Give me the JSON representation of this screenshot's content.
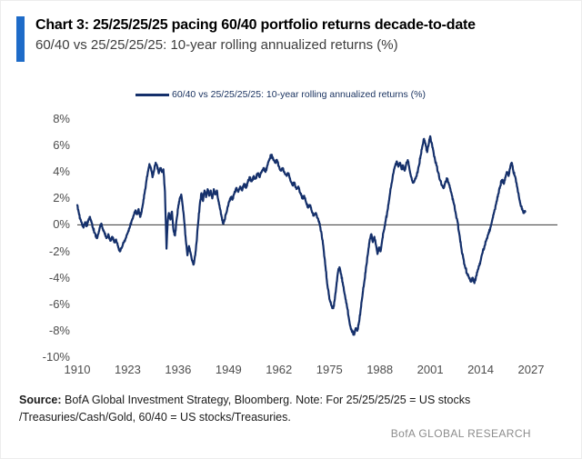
{
  "header": {
    "title": "Chart 3: 25/25/25/25 pacing 60/40 portfolio returns decade-to-date",
    "subtitle": "60/40 vs 25/25/25/25: 10-year rolling annualized returns (%)",
    "accent_color": "#1e6bc8"
  },
  "chart_data": {
    "type": "line",
    "title": "60/40 vs 25/25/25/25: 10-year rolling annualized returns (%)",
    "xlabel": "",
    "ylabel": "",
    "xlim": [
      1910,
      2027
    ],
    "ylim": [
      -10,
      8
    ],
    "x_ticks": [
      1910,
      1923,
      1936,
      1949,
      1962,
      1975,
      1988,
      2001,
      2014,
      2027
    ],
    "y_ticks": [
      8,
      6,
      4,
      2,
      0,
      -2,
      -4,
      -6,
      -8,
      -10
    ],
    "y_tick_suffix": "%",
    "grid": false,
    "zero_line": true,
    "zero_line_color": "#4d4d4d",
    "legend_position": "top",
    "series": [
      {
        "name": "60/40 vs 25/25/25/25: 10-year rolling annualized returns (%)",
        "color": "#15306b",
        "points": [
          [
            1910,
            1.5
          ],
          [
            1910.4,
            0.9
          ],
          [
            1910.8,
            0.4
          ],
          [
            1911.2,
            0.1
          ],
          [
            1911.6,
            -0.2
          ],
          [
            1912,
            0.2
          ],
          [
            1912.4,
            -0.1
          ],
          [
            1912.8,
            0.3
          ],
          [
            1913.2,
            0.6
          ],
          [
            1913.6,
            0.3
          ],
          [
            1914,
            -0.2
          ],
          [
            1914.5,
            -0.6
          ],
          [
            1915,
            -1.0
          ],
          [
            1915.4,
            -0.7
          ],
          [
            1915.8,
            -0.2
          ],
          [
            1916.2,
            0.1
          ],
          [
            1916.6,
            -0.3
          ],
          [
            1917,
            -0.6
          ],
          [
            1917.5,
            -1.0
          ],
          [
            1918,
            -0.7
          ],
          [
            1918.5,
            -1.2
          ],
          [
            1919,
            -0.9
          ],
          [
            1919.5,
            -1.3
          ],
          [
            1920,
            -1.1
          ],
          [
            1920.5,
            -1.6
          ],
          [
            1921,
            -2.0
          ],
          [
            1921.5,
            -1.7
          ],
          [
            1922,
            -1.3
          ],
          [
            1922.5,
            -1.0
          ],
          [
            1923,
            -0.6
          ],
          [
            1923.5,
            -0.2
          ],
          [
            1924,
            0.3
          ],
          [
            1924.5,
            0.7
          ],
          [
            1925,
            1.1
          ],
          [
            1925.4,
            0.8
          ],
          [
            1925.8,
            1.2
          ],
          [
            1926.2,
            0.6
          ],
          [
            1926.6,
            1.0
          ],
          [
            1927,
            1.7
          ],
          [
            1927.4,
            2.5
          ],
          [
            1927.8,
            3.3
          ],
          [
            1928.2,
            4.0
          ],
          [
            1928.6,
            4.6
          ],
          [
            1929,
            4.3
          ],
          [
            1929.4,
            3.6
          ],
          [
            1929.8,
            4.1
          ],
          [
            1930.2,
            4.7
          ],
          [
            1930.6,
            4.4
          ],
          [
            1931,
            3.9
          ],
          [
            1931.4,
            4.3
          ],
          [
            1931.8,
            4.0
          ],
          [
            1932.2,
            4.2
          ],
          [
            1932.6,
            2.5
          ],
          [
            1933,
            -1.8
          ],
          [
            1933.3,
            0.2
          ],
          [
            1933.6,
            0.9
          ],
          [
            1934,
            0.4
          ],
          [
            1934.4,
            1.0
          ],
          [
            1934.8,
            -0.4
          ],
          [
            1935.2,
            -0.8
          ],
          [
            1935.6,
            0.4
          ],
          [
            1936,
            1.3
          ],
          [
            1936.4,
            2.0
          ],
          [
            1936.8,
            2.3
          ],
          [
            1937.2,
            1.4
          ],
          [
            1937.6,
            0.2
          ],
          [
            1938,
            -1.2
          ],
          [
            1938.4,
            -2.3
          ],
          [
            1938.8,
            -1.6
          ],
          [
            1939.2,
            -2.1
          ],
          [
            1939.6,
            -2.7
          ],
          [
            1940,
            -3.0
          ],
          [
            1940.4,
            -2.3
          ],
          [
            1940.8,
            -1.2
          ],
          [
            1941.2,
            0.3
          ],
          [
            1941.6,
            1.6
          ],
          [
            1942,
            2.4
          ],
          [
            1942.4,
            1.8
          ],
          [
            1942.8,
            2.6
          ],
          [
            1943.2,
            2.1
          ],
          [
            1943.6,
            2.7
          ],
          [
            1944,
            2.2
          ],
          [
            1944.4,
            2.6
          ],
          [
            1944.8,
            2.0
          ],
          [
            1945.2,
            2.7
          ],
          [
            1945.6,
            2.3
          ],
          [
            1946,
            2.6
          ],
          [
            1946.4,
            1.8
          ],
          [
            1946.8,
            1.2
          ],
          [
            1947.2,
            0.6
          ],
          [
            1947.6,
            0.1
          ],
          [
            1948,
            0.4
          ],
          [
            1948.4,
            0.9
          ],
          [
            1948.8,
            1.4
          ],
          [
            1949.2,
            1.8
          ],
          [
            1949.6,
            2.1
          ],
          [
            1950,
            1.9
          ],
          [
            1950.5,
            2.4
          ],
          [
            1951,
            2.8
          ],
          [
            1951.5,
            2.5
          ],
          [
            1952,
            2.9
          ],
          [
            1952.5,
            2.6
          ],
          [
            1953,
            3.1
          ],
          [
            1953.5,
            2.8
          ],
          [
            1954,
            3.3
          ],
          [
            1954.5,
            3.6
          ],
          [
            1955,
            3.3
          ],
          [
            1955.5,
            3.7
          ],
          [
            1956,
            3.5
          ],
          [
            1956.5,
            3.9
          ],
          [
            1957,
            3.6
          ],
          [
            1957.5,
            4.0
          ],
          [
            1958,
            4.3
          ],
          [
            1958.5,
            4.0
          ],
          [
            1959,
            4.5
          ],
          [
            1959.5,
            4.9
          ],
          [
            1960,
            5.3
          ],
          [
            1960.5,
            5.0
          ],
          [
            1961,
            4.7
          ],
          [
            1961.5,
            4.9
          ],
          [
            1962,
            4.4
          ],
          [
            1962.5,
            4.1
          ],
          [
            1963,
            4.3
          ],
          [
            1963.5,
            3.9
          ],
          [
            1964,
            3.7
          ],
          [
            1964.5,
            3.9
          ],
          [
            1965,
            3.3
          ],
          [
            1965.5,
            3.0
          ],
          [
            1966,
            3.2
          ],
          [
            1966.5,
            2.7
          ],
          [
            1967,
            2.9
          ],
          [
            1967.5,
            2.4
          ],
          [
            1968,
            2.0
          ],
          [
            1968.5,
            2.2
          ],
          [
            1969,
            1.7
          ],
          [
            1969.5,
            1.3
          ],
          [
            1970,
            1.5
          ],
          [
            1970.5,
            1.0
          ],
          [
            1971,
            0.7
          ],
          [
            1971.5,
            0.9
          ],
          [
            1972,
            0.5
          ],
          [
            1972.5,
            0.1
          ],
          [
            1973,
            -0.7
          ],
          [
            1973.5,
            -1.8
          ],
          [
            1974,
            -3.2
          ],
          [
            1974.5,
            -4.6
          ],
          [
            1975,
            -5.6
          ],
          [
            1975.5,
            -6.1
          ],
          [
            1976,
            -6.3
          ],
          [
            1976.4,
            -5.6
          ],
          [
            1976.8,
            -4.6
          ],
          [
            1977.2,
            -3.6
          ],
          [
            1977.6,
            -3.2
          ],
          [
            1978,
            -3.7
          ],
          [
            1978.5,
            -4.5
          ],
          [
            1979,
            -5.3
          ],
          [
            1979.5,
            -6.1
          ],
          [
            1980,
            -7.0
          ],
          [
            1980.5,
            -7.8
          ],
          [
            1981,
            -8.1
          ],
          [
            1981.4,
            -8.3
          ],
          [
            1981.8,
            -7.8
          ],
          [
            1982.2,
            -8.0
          ],
          [
            1982.6,
            -7.4
          ],
          [
            1983,
            -6.6
          ],
          [
            1983.5,
            -5.4
          ],
          [
            1984,
            -4.3
          ],
          [
            1984.5,
            -3.1
          ],
          [
            1985,
            -2.0
          ],
          [
            1985.4,
            -1.1
          ],
          [
            1985.8,
            -0.7
          ],
          [
            1986.2,
            -1.3
          ],
          [
            1986.6,
            -0.9
          ],
          [
            1987,
            -1.5
          ],
          [
            1987.4,
            -2.2
          ],
          [
            1987.8,
            -1.7
          ],
          [
            1988.2,
            -2.0
          ],
          [
            1988.6,
            -1.2
          ],
          [
            1989,
            -0.5
          ],
          [
            1989.5,
            0.3
          ],
          [
            1990,
            1.1
          ],
          [
            1990.5,
            2.1
          ],
          [
            1991,
            3.1
          ],
          [
            1991.5,
            3.9
          ],
          [
            1992,
            4.5
          ],
          [
            1992.4,
            4.8
          ],
          [
            1992.8,
            4.4
          ],
          [
            1993.2,
            4.7
          ],
          [
            1993.6,
            4.2
          ],
          [
            1994,
            4.5
          ],
          [
            1994.4,
            4.1
          ],
          [
            1994.8,
            4.6
          ],
          [
            1995.2,
            4.9
          ],
          [
            1995.6,
            4.3
          ],
          [
            1996,
            3.7
          ],
          [
            1996.5,
            3.2
          ],
          [
            1997,
            3.4
          ],
          [
            1997.5,
            3.7
          ],
          [
            1998,
            4.4
          ],
          [
            1998.5,
            5.2
          ],
          [
            1999,
            6.0
          ],
          [
            1999.4,
            6.5
          ],
          [
            1999.8,
            6.1
          ],
          [
            2000.2,
            5.5
          ],
          [
            2000.6,
            6.1
          ],
          [
            2001,
            6.7
          ],
          [
            2001.4,
            6.2
          ],
          [
            2001.8,
            5.6
          ],
          [
            2002.2,
            5.0
          ],
          [
            2002.6,
            4.5
          ],
          [
            2003,
            4.0
          ],
          [
            2003.5,
            3.4
          ],
          [
            2004,
            3.0
          ],
          [
            2004.5,
            2.8
          ],
          [
            2005,
            3.3
          ],
          [
            2005.4,
            3.5
          ],
          [
            2005.8,
            3.1
          ],
          [
            2006.2,
            2.7
          ],
          [
            2006.6,
            2.2
          ],
          [
            2007,
            1.7
          ],
          [
            2007.5,
            1.0
          ],
          [
            2008,
            0.3
          ],
          [
            2008.5,
            -0.7
          ],
          [
            2009,
            -1.7
          ],
          [
            2009.5,
            -2.5
          ],
          [
            2010,
            -3.2
          ],
          [
            2010.5,
            -3.7
          ],
          [
            2011,
            -4.0
          ],
          [
            2011.5,
            -4.3
          ],
          [
            2012,
            -4.0
          ],
          [
            2012.4,
            -4.4
          ],
          [
            2012.8,
            -3.9
          ],
          [
            2013.2,
            -3.5
          ],
          [
            2013.6,
            -3.1
          ],
          [
            2014,
            -2.7
          ],
          [
            2014.5,
            -2.1
          ],
          [
            2015,
            -1.6
          ],
          [
            2015.5,
            -1.1
          ],
          [
            2016,
            -0.7
          ],
          [
            2016.5,
            -0.2
          ],
          [
            2017,
            0.4
          ],
          [
            2017.5,
            1.0
          ],
          [
            2018,
            1.6
          ],
          [
            2018.5,
            2.3
          ],
          [
            2019,
            2.9
          ],
          [
            2019.5,
            3.4
          ],
          [
            2020,
            3.1
          ],
          [
            2020.4,
            3.6
          ],
          [
            2020.8,
            4.0
          ],
          [
            2021.2,
            3.7
          ],
          [
            2021.6,
            4.3
          ],
          [
            2022,
            4.7
          ],
          [
            2022.4,
            4.1
          ],
          [
            2022.8,
            3.7
          ],
          [
            2023.2,
            3.2
          ],
          [
            2023.6,
            2.5
          ],
          [
            2024,
            1.9
          ],
          [
            2024.4,
            1.4
          ],
          [
            2024.8,
            1.1
          ],
          [
            2025.2,
            0.9
          ],
          [
            2025.5,
            1.0
          ]
        ]
      }
    ]
  },
  "footer": {
    "source_label": "Source:",
    "source_text": " BofA Global Investment Strategy, Bloomberg. Note: For 25/25/25/25 = US stocks /Treasuries/Cash/Gold, 60/40 = US stocks/Treasuries.",
    "brand": "BofA GLOBAL RESEARCH"
  }
}
